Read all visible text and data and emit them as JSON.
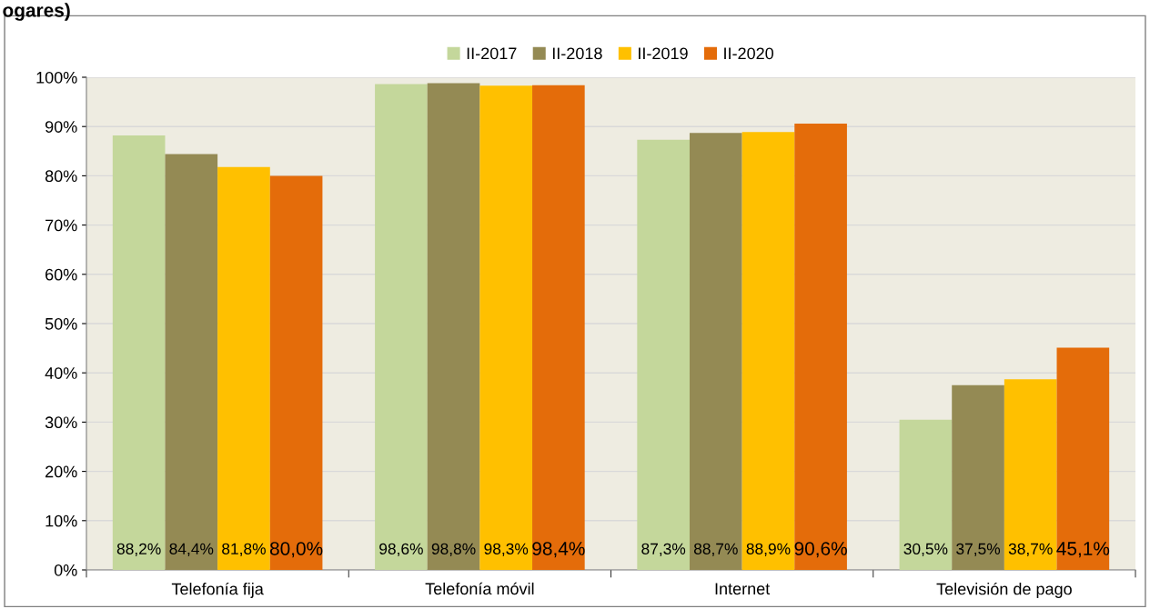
{
  "chart_data": {
    "type": "bar",
    "title": "ogares)",
    "categories": [
      "Telefonía fija",
      "Telefonía móvil",
      "Internet",
      "Televisión de pago"
    ],
    "series": [
      {
        "name": "II-2017",
        "color": "#c4d79b",
        "values": [
          88.2,
          98.6,
          87.3,
          30.5
        ],
        "value_labels": [
          "88,2%",
          "98,6%",
          "87,3%",
          "30,5%"
        ]
      },
      {
        "name": "II-2018",
        "color": "#948a54",
        "values": [
          84.4,
          98.8,
          88.7,
          37.5
        ],
        "value_labels": [
          "84,4%",
          "98,8%",
          "88,7%",
          "37,5%"
        ]
      },
      {
        "name": "II-2019",
        "color": "#ffc000",
        "values": [
          81.8,
          98.3,
          88.9,
          38.7
        ],
        "value_labels": [
          "81,8%",
          "98,3%",
          "88,9%",
          "38,7%"
        ]
      },
      {
        "name": "II-2020",
        "color": "#e46c0a",
        "values": [
          80.0,
          98.4,
          90.6,
          45.1
        ],
        "value_labels": [
          "80,0%",
          "98,4%",
          "90,6%",
          "45,1%"
        ]
      }
    ],
    "ylim": [
      0,
      100
    ],
    "yticks": [
      {
        "value": 0,
        "label": "0%"
      },
      {
        "value": 10,
        "label": "10%"
      },
      {
        "value": 20,
        "label": "20%"
      },
      {
        "value": 30,
        "label": "30%"
      },
      {
        "value": 40,
        "label": "40%"
      },
      {
        "value": 50,
        "label": "50%"
      },
      {
        "value": 60,
        "label": "60%"
      },
      {
        "value": 70,
        "label": "70%"
      },
      {
        "value": 80,
        "label": "80%"
      },
      {
        "value": 90,
        "label": "90%"
      },
      {
        "value": 100,
        "label": "100%"
      }
    ],
    "grid": "y",
    "legend": "top"
  }
}
